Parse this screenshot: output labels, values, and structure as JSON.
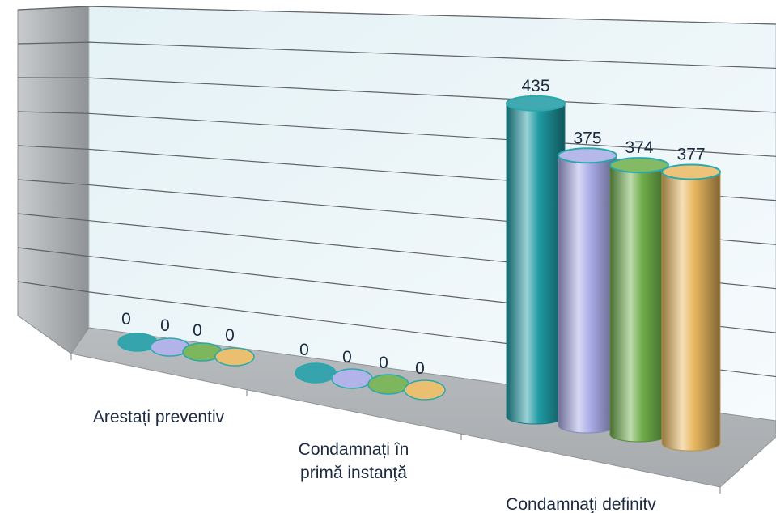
{
  "chart_data": {
    "type": "bar",
    "style": "3d-cylinder",
    "categories": [
      [
        "Arestați preventiv"
      ],
      [
        "Condamnați în",
        "primă instanţă"
      ],
      [
        "Condamnaţi definitv"
      ]
    ],
    "series": [
      {
        "values": [
          0,
          0,
          435
        ],
        "color": "#1f9aa3"
      },
      {
        "values": [
          0,
          0,
          375
        ],
        "color": "#a9abe6"
      },
      {
        "values": [
          0,
          0,
          374
        ],
        "color": "#6fae4a"
      },
      {
        "values": [
          0,
          0,
          377
        ],
        "color": "#e9b860"
      }
    ],
    "ylim": [
      0,
      450
    ],
    "grid": true
  }
}
